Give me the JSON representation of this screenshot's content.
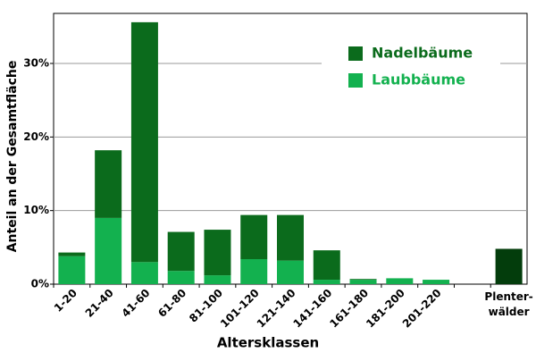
{
  "chart_data": {
    "type": "stacked-bar",
    "x_label": "Altersklassen",
    "y_label": "Anteil an der Gesamtfläche",
    "categories": [
      "1-20",
      "21-40",
      "41-60",
      "61-80",
      "81-100",
      "101-120",
      "121-140",
      "141-160",
      "161-180",
      "181-200",
      "201-220",
      null,
      "Plenter-\nwälder"
    ],
    "series": [
      {
        "name": "Laubbäume",
        "color": "#13b14f",
        "values": [
          3.8,
          9.0,
          3.0,
          1.8,
          1.2,
          3.4,
          3.2,
          0.6,
          0.6,
          0.8,
          0.6,
          null,
          null
        ]
      },
      {
        "name": "Nadelbäume",
        "color": "#0b6b1c",
        "values": [
          0.5,
          9.2,
          32.6,
          5.3,
          6.2,
          6.0,
          6.2,
          4.0,
          0.1,
          null,
          null,
          null,
          null
        ]
      },
      {
        "color": "#033d0c",
        "values": [
          null,
          null,
          null,
          null,
          null,
          null,
          null,
          null,
          null,
          null,
          null,
          null,
          4.8
        ]
      }
    ],
    "ylim": [
      0,
      36.8
    ],
    "yticks": [
      {
        "value": 0,
        "label": "0%"
      },
      {
        "value": 10,
        "label": "10%"
      },
      {
        "value": 20,
        "label": "20%"
      },
      {
        "value": 30,
        "label": "30%"
      }
    ],
    "grid": true,
    "legend": "top-right"
  }
}
